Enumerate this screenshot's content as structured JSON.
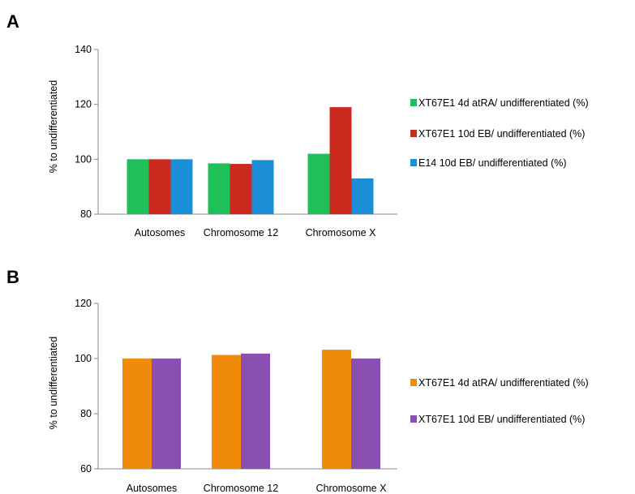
{
  "chart_data": [
    {
      "type": "bar",
      "panel_label": "A",
      "ylabel": "% to undifferentiated",
      "ylim": [
        80,
        140
      ],
      "yticks": [
        80,
        100,
        120,
        140
      ],
      "categories": [
        "Autosomes",
        "Chromosome 12",
        "Chromosome X"
      ],
      "series": [
        {
          "name": "XT67E1 4d atRA/ undifferentiated (%)",
          "color": "#1fbf5a",
          "values": [
            100,
            98.5,
            102
          ]
        },
        {
          "name": "XT67E1 10d EB/ undifferentiated (%)",
          "color": "#cc2a1f",
          "values": [
            100,
            98.3,
            119
          ]
        },
        {
          "name": "E14 10d EB/ undifferentiated (%)",
          "color": "#1a8fd8",
          "values": [
            100,
            99.7,
            93
          ]
        }
      ],
      "legend_position": "right",
      "grid": false
    },
    {
      "type": "bar",
      "panel_label": "B",
      "ylabel": "% to undifferentiated",
      "ylim": [
        60,
        120
      ],
      "yticks": [
        60,
        80,
        100,
        120
      ],
      "categories": [
        "Autosomes",
        "Chromosome 12",
        "Chromosome X"
      ],
      "series": [
        {
          "name": "XT67E1 4d atRA/ undifferentiated (%)",
          "color": "#f08a0a",
          "values": [
            100,
            101.3,
            103.2
          ]
        },
        {
          "name": "XT67E1 10d EB/ undifferentiated (%)",
          "color": "#8b4fb4",
          "values": [
            100,
            101.8,
            100
          ]
        }
      ],
      "legend_position": "right",
      "grid": false
    }
  ]
}
